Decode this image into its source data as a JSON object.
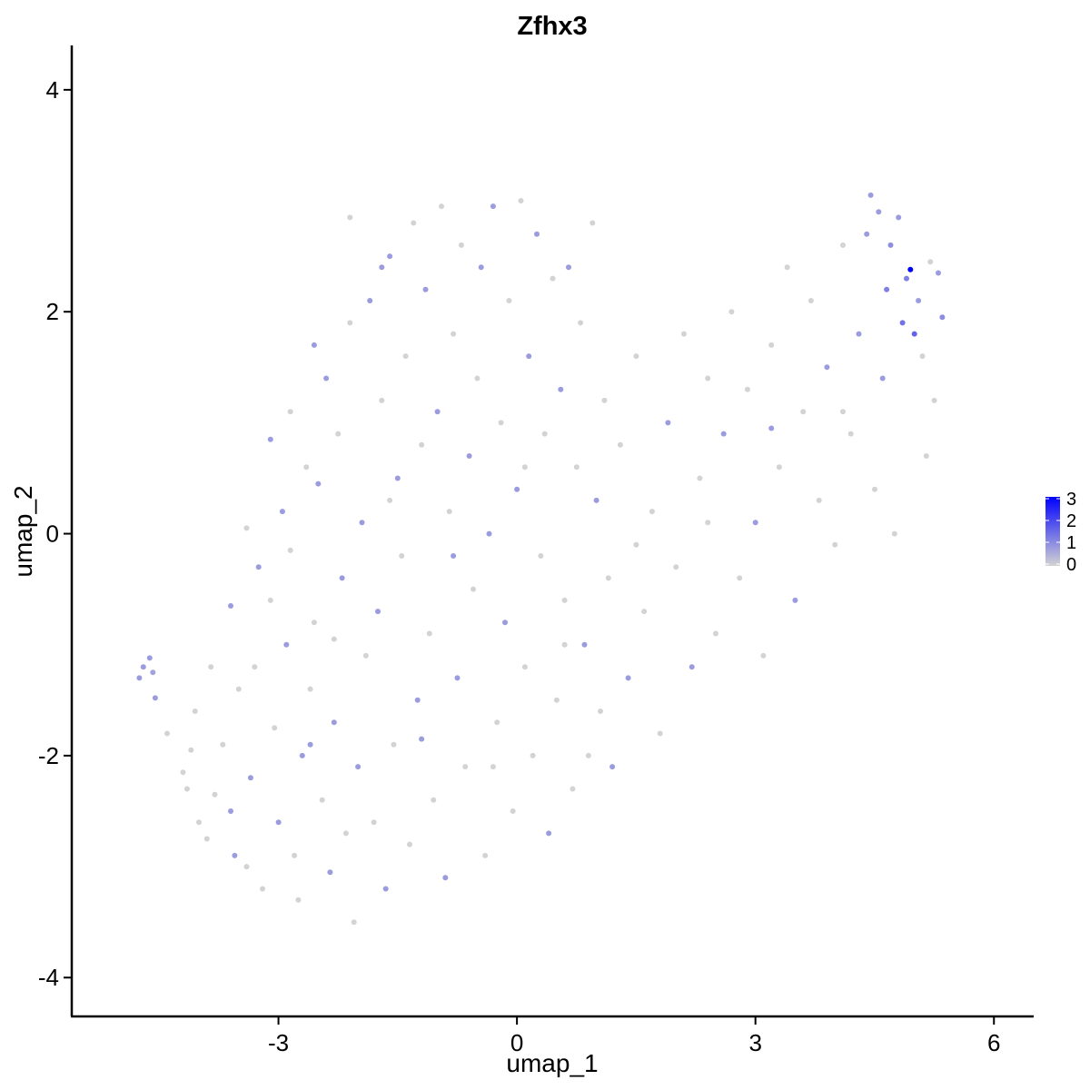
{
  "chart_data": {
    "type": "scatter",
    "title": "Zfhx3",
    "xlabel": "umap_1",
    "ylabel": "umap_2",
    "xlim": [
      -5.6,
      6.5
    ],
    "ylim": [
      -4.35,
      4.4
    ],
    "x_ticks": [
      -3,
      0,
      3,
      6
    ],
    "x_tick_labels": [
      "-3",
      "0",
      "3",
      "6"
    ],
    "y_ticks": [
      -4,
      -2,
      0,
      2,
      4
    ],
    "y_tick_labels": [
      "-4",
      "-2",
      "0",
      "2",
      "4"
    ],
    "grid": false,
    "legend": {
      "placement": "right",
      "kind": "colorbar",
      "min": 0,
      "max": 3,
      "ticks": [
        0,
        1,
        2,
        3
      ],
      "tick_labels": [
        "0",
        "1",
        "2",
        "3"
      ],
      "color_low": "#d3d3d3",
      "color_high": "#0000ff"
    },
    "expression_color_low": "#d3d3d3",
    "expression_color_high": "#0000ff",
    "points": [
      [
        -4.75,
        -1.3,
        0.8
      ],
      [
        -4.7,
        -1.2,
        0.8
      ],
      [
        -4.62,
        -1.12,
        0.8
      ],
      [
        -4.58,
        -1.25,
        0.7
      ],
      [
        -4.55,
        -1.48,
        0.8
      ],
      [
        -4.4,
        -1.8,
        0
      ],
      [
        -4.2,
        -2.15,
        0
      ],
      [
        -4.15,
        -2.3,
        0
      ],
      [
        -4.1,
        -1.95,
        0
      ],
      [
        -4.05,
        -1.6,
        0
      ],
      [
        -4.0,
        -2.6,
        0
      ],
      [
        -3.9,
        -2.75,
        0
      ],
      [
        -3.8,
        -2.35,
        0
      ],
      [
        -3.7,
        -1.9,
        0
      ],
      [
        -3.6,
        -2.5,
        0.8
      ],
      [
        -3.55,
        -2.9,
        0.8
      ],
      [
        -3.5,
        -1.4,
        0
      ],
      [
        -3.4,
        -3.0,
        0
      ],
      [
        -3.35,
        -2.2,
        0.8
      ],
      [
        -3.3,
        -1.2,
        0
      ],
      [
        -3.25,
        -0.3,
        0.8
      ],
      [
        -3.2,
        -3.2,
        0
      ],
      [
        -3.1,
        -0.6,
        0
      ],
      [
        -3.05,
        -1.75,
        0
      ],
      [
        -3.0,
        -2.6,
        0.8
      ],
      [
        -2.95,
        0.2,
        0.8
      ],
      [
        -2.9,
        -1.0,
        0.8
      ],
      [
        -2.85,
        -0.15,
        0
      ],
      [
        -2.8,
        -2.9,
        0
      ],
      [
        -2.75,
        -3.3,
        0
      ],
      [
        -2.7,
        -2.0,
        0.8
      ],
      [
        -2.65,
        0.6,
        0
      ],
      [
        -2.6,
        -1.4,
        0
      ],
      [
        -2.55,
        -0.8,
        0
      ],
      [
        -2.5,
        0.45,
        0.8
      ],
      [
        -2.45,
        -2.4,
        0
      ],
      [
        -2.4,
        1.4,
        0.8
      ],
      [
        -2.35,
        -3.05,
        0.8
      ],
      [
        -2.3,
        -1.7,
        0.8
      ],
      [
        -2.25,
        0.9,
        0
      ],
      [
        -2.2,
        -0.4,
        0.8
      ],
      [
        -2.15,
        -2.7,
        0
      ],
      [
        -2.1,
        1.9,
        0
      ],
      [
        -2.05,
        -3.5,
        0
      ],
      [
        -2.0,
        -2.1,
        0.8
      ],
      [
        -1.95,
        0.1,
        0.8
      ],
      [
        -1.9,
        -1.1,
        0
      ],
      [
        -1.85,
        2.1,
        0.8
      ],
      [
        -1.8,
        -2.6,
        0
      ],
      [
        -1.75,
        -0.7,
        0.8
      ],
      [
        -1.7,
        1.2,
        0
      ],
      [
        -1.65,
        -3.2,
        0.8
      ],
      [
        -1.6,
        2.5,
        0.8
      ],
      [
        -1.55,
        -1.9,
        0
      ],
      [
        -1.5,
        0.5,
        0.8
      ],
      [
        -1.45,
        -0.2,
        0
      ],
      [
        -1.4,
        1.6,
        0
      ],
      [
        -1.35,
        -2.8,
        0
      ],
      [
        -1.3,
        2.8,
        0
      ],
      [
        -1.25,
        -1.5,
        0.8
      ],
      [
        -1.2,
        0.8,
        0
      ],
      [
        -1.15,
        2.2,
        0.8
      ],
      [
        -1.1,
        -0.9,
        0
      ],
      [
        -1.05,
        -2.4,
        0
      ],
      [
        -1.0,
        1.1,
        0.8
      ],
      [
        -0.95,
        2.95,
        0
      ],
      [
        -0.9,
        -3.1,
        0.8
      ],
      [
        -0.85,
        0.2,
        0
      ],
      [
        -0.8,
        1.8,
        0
      ],
      [
        -0.75,
        -1.3,
        0.8
      ],
      [
        -0.7,
        2.6,
        0
      ],
      [
        -0.65,
        -2.1,
        0
      ],
      [
        -0.6,
        0.7,
        0.8
      ],
      [
        -0.55,
        -0.5,
        0
      ],
      [
        -0.5,
        1.4,
        0
      ],
      [
        -0.45,
        2.4,
        0.8
      ],
      [
        -0.4,
        -2.9,
        0
      ],
      [
        -0.35,
        0.0,
        0.8
      ],
      [
        -0.3,
        2.95,
        0.8
      ],
      [
        -0.25,
        -1.7,
        0
      ],
      [
        -0.2,
        1.0,
        0
      ],
      [
        -0.15,
        -0.8,
        0.8
      ],
      [
        -0.1,
        2.1,
        0
      ],
      [
        -0.05,
        -2.5,
        0
      ],
      [
        0.0,
        0.4,
        0.8
      ],
      [
        0.05,
        3.0,
        0
      ],
      [
        0.1,
        -1.2,
        0
      ],
      [
        0.15,
        1.6,
        0.8
      ],
      [
        0.2,
        -2.0,
        0
      ],
      [
        0.25,
        2.7,
        0.8
      ],
      [
        0.3,
        -0.2,
        0
      ],
      [
        0.35,
        0.9,
        0
      ],
      [
        0.4,
        -2.7,
        0.8
      ],
      [
        0.45,
        2.3,
        0
      ],
      [
        0.5,
        -1.5,
        0
      ],
      [
        0.55,
        1.3,
        0.8
      ],
      [
        0.6,
        -0.6,
        0
      ],
      [
        0.65,
        2.4,
        0.8
      ],
      [
        0.7,
        -2.3,
        0
      ],
      [
        0.75,
        0.6,
        0
      ],
      [
        0.8,
        1.9,
        0
      ],
      [
        0.85,
        -1.0,
        0.8
      ],
      [
        0.9,
        -2.0,
        0
      ],
      [
        0.95,
        2.8,
        0
      ],
      [
        1.0,
        0.3,
        0.8
      ],
      [
        1.05,
        -1.6,
        0
      ],
      [
        1.1,
        1.2,
        0
      ],
      [
        1.15,
        -0.4,
        0
      ],
      [
        1.2,
        -2.1,
        0.8
      ],
      [
        1.3,
        0.8,
        0
      ],
      [
        1.4,
        -1.3,
        0.8
      ],
      [
        1.5,
        1.6,
        0
      ],
      [
        1.6,
        -0.7,
        0
      ],
      [
        1.7,
        0.2,
        0
      ],
      [
        1.8,
        -1.8,
        0
      ],
      [
        1.9,
        1.0,
        0.8
      ],
      [
        2.0,
        -0.3,
        0
      ],
      [
        2.1,
        1.8,
        0
      ],
      [
        2.2,
        -1.2,
        0.8
      ],
      [
        2.3,
        0.5,
        0
      ],
      [
        2.4,
        1.4,
        0
      ],
      [
        2.5,
        -0.9,
        0
      ],
      [
        2.6,
        0.9,
        0.8
      ],
      [
        2.7,
        2.0,
        0
      ],
      [
        2.8,
        -0.4,
        0
      ],
      [
        2.9,
        1.3,
        0
      ],
      [
        3.0,
        0.1,
        0.8
      ],
      [
        3.1,
        -1.1,
        0
      ],
      [
        3.2,
        1.7,
        0
      ],
      [
        3.3,
        0.6,
        0
      ],
      [
        3.4,
        2.4,
        0
      ],
      [
        3.5,
        -0.6,
        0.8
      ],
      [
        3.6,
        1.1,
        0
      ],
      [
        3.7,
        2.1,
        0
      ],
      [
        3.8,
        0.3,
        0
      ],
      [
        3.9,
        1.5,
        0.8
      ],
      [
        4.0,
        -0.1,
        0
      ],
      [
        4.1,
        2.6,
        0
      ],
      [
        4.2,
        0.9,
        0
      ],
      [
        4.3,
        1.8,
        0.8
      ],
      [
        4.4,
        2.7,
        0.8
      ],
      [
        4.45,
        3.05,
        0.8
      ],
      [
        4.5,
        0.4,
        0
      ],
      [
        4.55,
        2.9,
        0.8
      ],
      [
        4.6,
        1.4,
        0.8
      ],
      [
        4.65,
        2.2,
        1.2
      ],
      [
        4.7,
        2.6,
        1.0
      ],
      [
        4.75,
        0.0,
        0
      ],
      [
        4.8,
        2.85,
        0.8
      ],
      [
        4.85,
        1.9,
        1.4
      ],
      [
        4.9,
        2.3,
        1.2
      ],
      [
        4.95,
        2.38,
        3.0
      ],
      [
        5.0,
        1.8,
        1.6
      ],
      [
        5.05,
        2.1,
        0.8
      ],
      [
        5.1,
        1.6,
        0
      ],
      [
        5.15,
        0.7,
        0
      ],
      [
        5.2,
        2.45,
        0
      ],
      [
        5.25,
        1.2,
        0
      ],
      [
        5.3,
        2.35,
        0.8
      ],
      [
        5.35,
        1.95,
        1.0
      ],
      [
        -2.1,
        2.85,
        0
      ],
      [
        -1.7,
        2.4,
        0.8
      ],
      [
        -2.55,
        1.7,
        0.8
      ],
      [
        -2.85,
        1.1,
        0
      ],
      [
        -3.1,
        0.85,
        0.8
      ],
      [
        -3.4,
        0.05,
        0
      ],
      [
        -3.6,
        -0.65,
        0.8
      ],
      [
        -3.85,
        -1.2,
        0
      ],
      [
        -2.3,
        -0.95,
        0
      ],
      [
        -1.2,
        -1.85,
        0.8
      ],
      [
        -0.3,
        -2.1,
        0
      ],
      [
        0.6,
        -1.0,
        0
      ],
      [
        1.5,
        -0.1,
        0
      ],
      [
        2.4,
        0.1,
        0
      ],
      [
        3.2,
        0.95,
        0.8
      ],
      [
        4.1,
        1.1,
        0
      ],
      [
        -0.8,
        -0.2,
        0.8
      ],
      [
        0.1,
        0.6,
        0
      ],
      [
        -1.6,
        0.3,
        0
      ],
      [
        -2.6,
        -1.9,
        0.8
      ]
    ]
  }
}
